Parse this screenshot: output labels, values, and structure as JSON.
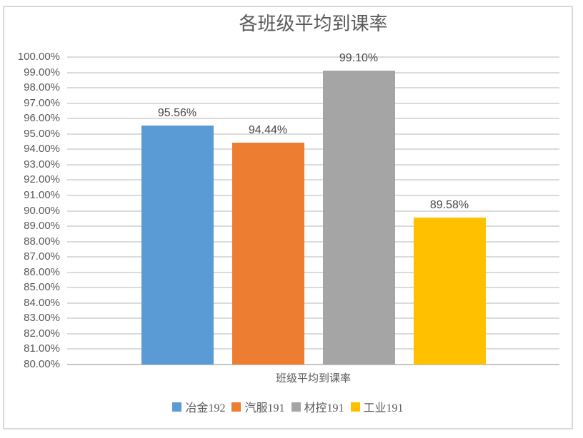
{
  "chart_data": {
    "type": "bar",
    "title": "各班级平均到课率",
    "xlabel": "班级平均到课率",
    "categories": [
      "班级平均到课率"
    ],
    "series": [
      {
        "name": "冶金192",
        "values": [
          95.56
        ],
        "data_label": "95.56%",
        "color": "#5B9BD5"
      },
      {
        "name": "汽服191",
        "values": [
          94.44
        ],
        "data_label": "94.44%",
        "color": "#ED7D31"
      },
      {
        "name": "材控191",
        "values": [
          99.1
        ],
        "data_label": "99.10%",
        "color": "#A5A5A5"
      },
      {
        "name": "工业191",
        "values": [
          89.58
        ],
        "data_label": "89.58%",
        "color": "#FFC000"
      }
    ],
    "ylim": [
      80,
      100
    ],
    "ytick_step": 1,
    "ytick_labels": [
      "100.00%",
      "99.00%",
      "98.00%",
      "97.00%",
      "96.00%",
      "95.00%",
      "94.00%",
      "93.00%",
      "92.00%",
      "91.00%",
      "90.00%",
      "89.00%",
      "88.00%",
      "87.00%",
      "86.00%",
      "85.00%",
      "84.00%",
      "83.00%",
      "82.00%",
      "81.00%",
      "80.00%"
    ],
    "grid": true,
    "legend_position": "bottom"
  },
  "colors": {
    "gridline": "#DBDBDB",
    "axis_line": "#C6C6C6",
    "frame_border": "#D9D9D9",
    "text": "#595959",
    "data_label_text": "#474747"
  }
}
